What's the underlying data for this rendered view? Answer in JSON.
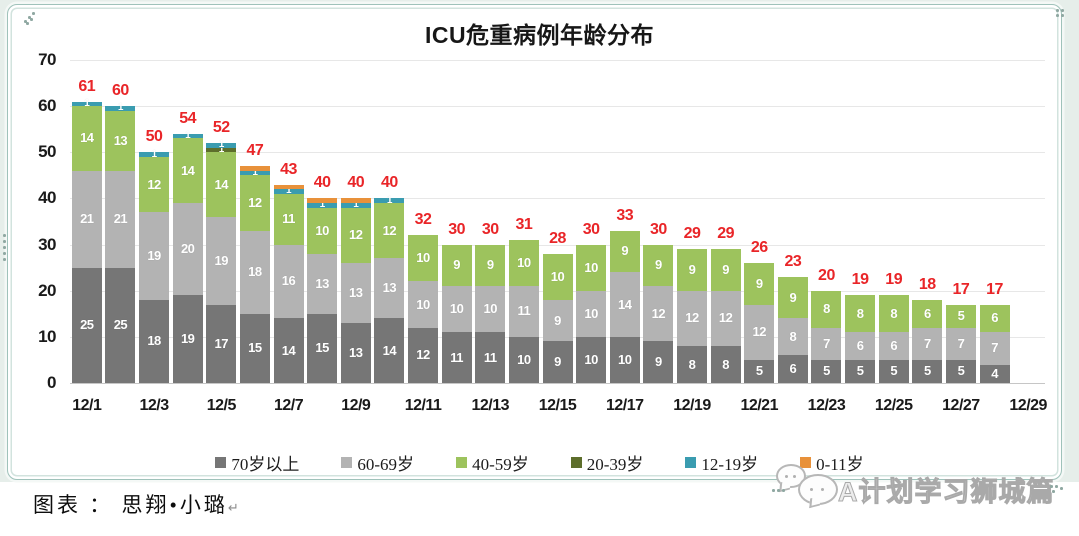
{
  "title": "ICU危重病例年龄分布",
  "caption": {
    "label": "图表 ： 思翔•小璐",
    "return_mark": "↵"
  },
  "watermark": {
    "label": "A计划学习狮城篇"
  },
  "chart_data": {
    "type": "bar",
    "stacked": true,
    "title": "ICU危重病例年龄分布",
    "categories": [
      "12/1",
      "12/2",
      "12/3",
      "12/4",
      "12/5",
      "12/6",
      "12/7",
      "12/8",
      "12/9",
      "12/10",
      "12/11",
      "12/12",
      "12/13",
      "12/14",
      "12/15",
      "12/16",
      "12/17",
      "12/18",
      "12/19",
      "12/20",
      "12/21",
      "12/22",
      "12/23",
      "12/24",
      "12/25",
      "12/26",
      "12/27",
      "12/28"
    ],
    "x_tick_labels": [
      "12/1",
      "12/3",
      "12/5",
      "12/7",
      "12/9",
      "12/11",
      "12/13",
      "12/15",
      "12/17",
      "12/19",
      "12/21",
      "12/23",
      "12/25",
      "12/27",
      "12/29"
    ],
    "series": [
      {
        "name": "70岁以上",
        "color": "#767676",
        "values": [
          25,
          25,
          18,
          19,
          17,
          15,
          14,
          15,
          13,
          14,
          12,
          11,
          11,
          10,
          9,
          10,
          10,
          9,
          8,
          8,
          5,
          6,
          5,
          5,
          5,
          5,
          5,
          4
        ]
      },
      {
        "name": "60-69岁",
        "color": "#b3b3b3",
        "values": [
          21,
          21,
          19,
          20,
          19,
          18,
          16,
          13,
          13,
          13,
          10,
          10,
          10,
          11,
          9,
          10,
          14,
          12,
          12,
          12,
          12,
          8,
          7,
          6,
          6,
          7,
          7,
          7
        ]
      },
      {
        "name": "40-59岁",
        "color": "#9dc35d",
        "values": [
          14,
          13,
          12,
          14,
          14,
          12,
          11,
          10,
          12,
          12,
          10,
          9,
          9,
          10,
          10,
          10,
          9,
          9,
          9,
          9,
          9,
          9,
          8,
          8,
          8,
          6,
          5,
          6
        ]
      },
      {
        "name": "20-39岁",
        "color": "#5d6e2b",
        "values": [
          0,
          0,
          0,
          0,
          1,
          0,
          0,
          0,
          0,
          0,
          0,
          0,
          0,
          0,
          0,
          0,
          0,
          0,
          0,
          0,
          0,
          0,
          0,
          0,
          0,
          0,
          0,
          0
        ]
      },
      {
        "name": "12-19岁",
        "color": "#3a9cb0",
        "values": [
          1,
          1,
          1,
          1,
          1,
          1,
          1,
          1,
          1,
          1,
          0,
          0,
          0,
          0,
          0,
          0,
          0,
          0,
          0,
          0,
          0,
          0,
          0,
          0,
          0,
          0,
          0,
          0
        ]
      },
      {
        "name": "0-11岁",
        "color": "#e8913a",
        "values": [
          0,
          0,
          0,
          0,
          0,
          1,
          1,
          1,
          1,
          0,
          0,
          0,
          0,
          0,
          0,
          0,
          0,
          0,
          0,
          0,
          0,
          0,
          0,
          0,
          0,
          0,
          0,
          0
        ]
      }
    ],
    "totals": [
      61,
      60,
      50,
      54,
      52,
      47,
      43,
      40,
      40,
      40,
      32,
      30,
      30,
      31,
      28,
      30,
      33,
      30,
      29,
      29,
      26,
      23,
      20,
      19,
      19,
      18,
      17,
      17
    ],
    "ylabel": "",
    "xlabel": "",
    "ylim": [
      0,
      70
    ],
    "y_ticks": [
      0,
      10,
      20,
      30,
      40,
      50,
      60,
      70
    ],
    "grid": true,
    "legend_position": "bottom",
    "colors": {
      "total_label": "#e92528",
      "segment_label": "#ffffff"
    }
  }
}
